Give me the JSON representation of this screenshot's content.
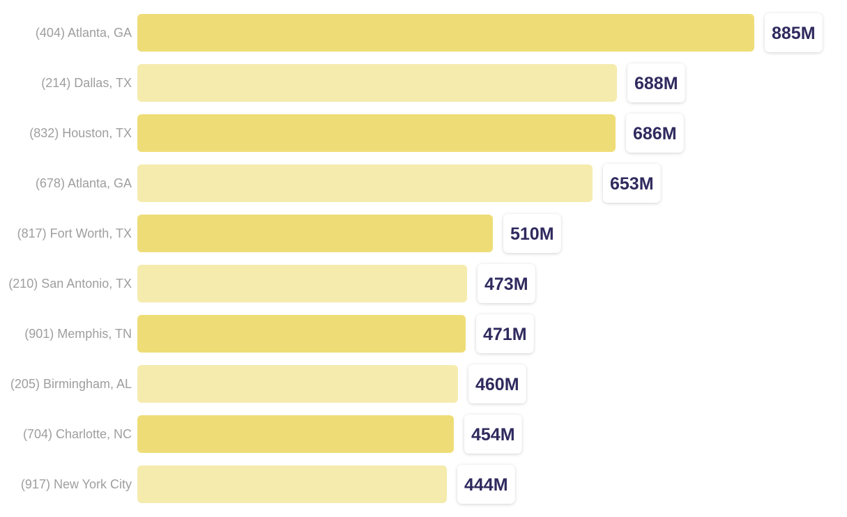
{
  "chart_data": {
    "type": "bar",
    "orientation": "horizontal",
    "categories": [
      "(404) Atlanta, GA",
      "(214) Dallas, TX",
      "(832) Houston, TX",
      "(678) Atlanta, GA",
      "(817) Fort Worth, TX",
      "(210) San Antonio, TX",
      "(901) Memphis, TN",
      "(205) Birmingham, AL",
      "(704) Charlotte, NC",
      "(917) New York City"
    ],
    "values": [
      885,
      688,
      686,
      653,
      510,
      473,
      471,
      460,
      454,
      444
    ],
    "value_labels": [
      "885M",
      "688M",
      "686M",
      "653M",
      "510M",
      "473M",
      "471M",
      "460M",
      "454M",
      "444M"
    ],
    "title": "",
    "xlabel": "",
    "ylabel": "",
    "xlim": [
      0,
      885
    ],
    "grid": false,
    "legend": "none"
  },
  "colors": {
    "bar_primary": "#eedd77",
    "bar_secondary": "#f5ebad",
    "category_text": "#9e9e9e",
    "value_text": "#2f2a5e",
    "value_box": "#ffffff"
  }
}
